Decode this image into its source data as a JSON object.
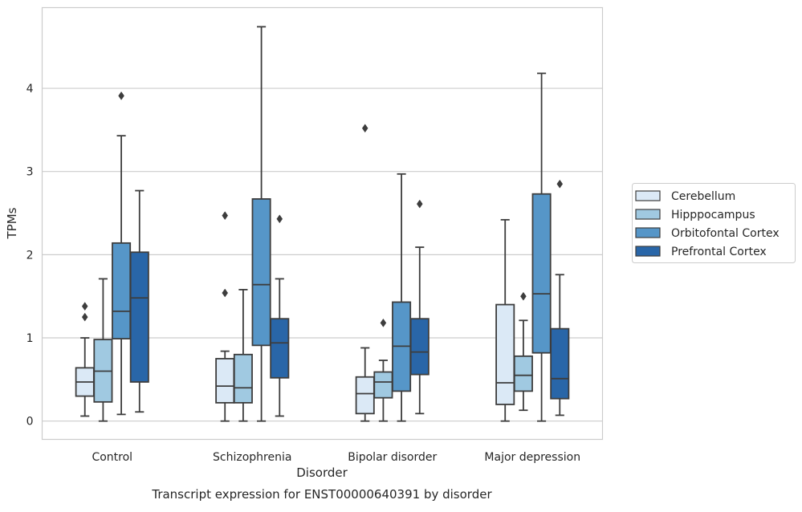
{
  "chart_data": {
    "type": "boxplot",
    "title": "Transcript expression for ENST00000640391 by disorder",
    "xlabel": "Disorder",
    "ylabel": "TPMs",
    "ylim": [
      -0.22,
      4.97
    ],
    "yticks": [
      0,
      1,
      2,
      3,
      4
    ],
    "grid": "horizontal",
    "legend_position": "right",
    "categories": [
      "Control",
      "Schizophrenia",
      "Bipolar disorder",
      "Major depression"
    ],
    "series": [
      {
        "name": "Cerebellum",
        "color": "#dbe9f6",
        "boxes": [
          {
            "whislo": 0.06,
            "q1": 0.3,
            "med": 0.47,
            "q3": 0.64,
            "whishi": 1.0,
            "fliers": [
              1.25,
              1.38
            ]
          },
          {
            "whislo": 0.0,
            "q1": 0.22,
            "med": 0.42,
            "q3": 0.75,
            "whishi": 0.84,
            "fliers": [
              1.54,
              2.47
            ]
          },
          {
            "whislo": 0.0,
            "q1": 0.09,
            "med": 0.33,
            "q3": 0.53,
            "whishi": 0.88,
            "fliers": [
              3.52
            ]
          },
          {
            "whislo": 0.0,
            "q1": 0.2,
            "med": 0.46,
            "q3": 1.4,
            "whishi": 2.42,
            "fliers": []
          }
        ]
      },
      {
        "name": "Hipppocampus",
        "color": "#a0c9e1",
        "boxes": [
          {
            "whislo": 0.0,
            "q1": 0.23,
            "med": 0.6,
            "q3": 0.98,
            "whishi": 1.71,
            "fliers": []
          },
          {
            "whislo": 0.0,
            "q1": 0.22,
            "med": 0.4,
            "q3": 0.8,
            "whishi": 1.58,
            "fliers": []
          },
          {
            "whislo": 0.0,
            "q1": 0.28,
            "med": 0.47,
            "q3": 0.59,
            "whishi": 0.73,
            "fliers": [
              1.18
            ]
          },
          {
            "whislo": 0.13,
            "q1": 0.36,
            "med": 0.55,
            "q3": 0.78,
            "whishi": 1.21,
            "fliers": [
              1.5
            ]
          }
        ]
      },
      {
        "name": "Orbitofontal Cortex",
        "color": "#5696c8",
        "boxes": [
          {
            "whislo": 0.08,
            "q1": 0.99,
            "med": 1.32,
            "q3": 2.14,
            "whishi": 3.43,
            "fliers": [
              3.91
            ]
          },
          {
            "whislo": 0.0,
            "q1": 0.91,
            "med": 1.64,
            "q3": 2.67,
            "whishi": 4.74,
            "fliers": []
          },
          {
            "whislo": 0.0,
            "q1": 0.36,
            "med": 0.9,
            "q3": 1.43,
            "whishi": 2.97,
            "fliers": []
          },
          {
            "whislo": 0.0,
            "q1": 0.82,
            "med": 1.53,
            "q3": 2.73,
            "whishi": 4.18,
            "fliers": []
          }
        ]
      },
      {
        "name": "Prefrontal Cortex",
        "color": "#2966a8",
        "boxes": [
          {
            "whislo": 0.11,
            "q1": 0.47,
            "med": 1.48,
            "q3": 2.03,
            "whishi": 2.77,
            "fliers": []
          },
          {
            "whislo": 0.06,
            "q1": 0.52,
            "med": 0.94,
            "q3": 1.23,
            "whishi": 1.71,
            "fliers": [
              2.43
            ]
          },
          {
            "whislo": 0.09,
            "q1": 0.56,
            "med": 0.83,
            "q3": 1.23,
            "whishi": 2.09,
            "fliers": [
              2.61
            ]
          },
          {
            "whislo": 0.07,
            "q1": 0.27,
            "med": 0.51,
            "q3": 1.11,
            "whishi": 1.76,
            "fliers": [
              2.85
            ]
          }
        ]
      }
    ]
  }
}
